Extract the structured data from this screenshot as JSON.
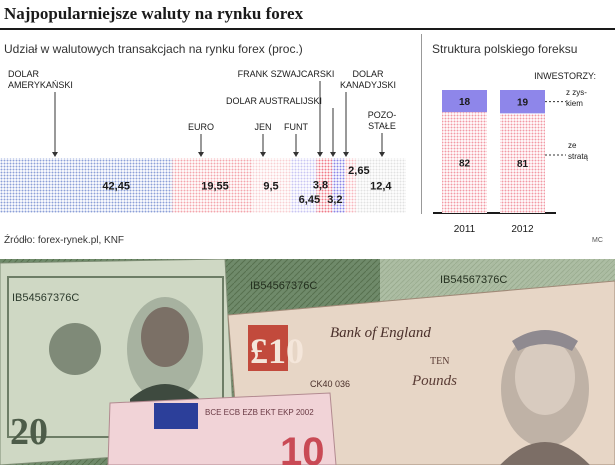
{
  "title": "Najpopularniejsze waluty na rynku forex",
  "left_subtitle": "Udział w walutowych transakcjach na rynku forex (proc.)",
  "right_subtitle": "Struktura polskiego foreksu",
  "source": "Źródło: forex-rynek.pl, KNF",
  "credit": "MC",
  "colors": {
    "dolar_amerykanski": "#8ca0d8",
    "euro": "#f4a6ad",
    "jen": "#f8d0d3",
    "funt": "#c9c6f2",
    "frank": "#f07a88",
    "dolar_australijski": "#8b84e6",
    "dolar_kanadyjski": "#f7b6bd",
    "pozostale": "#e2e2e2",
    "zysk": "#8e86ea",
    "strata": "#f29aa5"
  },
  "chart_data": [
    {
      "type": "bar",
      "orientation": "horizontal-stacked",
      "title": "Udział w walutowych transakcjach na rynku forex (proc.)",
      "categories": [
        "DOLAR AMERYKAŃSKI",
        "EURO",
        "JEN",
        "FUNT",
        "FRANK SZWAJCARSKI",
        "DOLAR AUSTRALIJSKI",
        "DOLAR KANADYJSKI",
        "POZO-STAŁE"
      ],
      "values": [
        42.45,
        19.55,
        9.5,
        6.45,
        3.8,
        3.2,
        2.65,
        12.4
      ],
      "value_labels": [
        "42,45",
        "19,55",
        "9,5",
        "6,45",
        "3,8",
        "3,2",
        "2,65",
        "12,4"
      ],
      "category_lines": [
        [
          "DOLAR",
          "AMERYKAŃSKI"
        ],
        [
          "EURO"
        ],
        [
          "JEN"
        ],
        [
          "FUNT"
        ],
        [
          "FRANK SZWAJCARSKI"
        ],
        [
          "DOLAR AUSTRALIJSKI"
        ],
        [
          "DOLAR",
          "KANADYJSKI"
        ],
        [
          "POZO-",
          "STAŁE"
        ]
      ]
    },
    {
      "type": "bar",
      "orientation": "vertical-stacked",
      "title": "Struktura polskiego foreksu",
      "legend_title": "INWESTORZY:",
      "categories": [
        "2011",
        "2012"
      ],
      "series": [
        {
          "name": "z zyskiem",
          "name_lines": [
            "z zys-",
            "kiem"
          ],
          "values": [
            18,
            19
          ]
        },
        {
          "name": "ze stratą",
          "name_lines": [
            "ze",
            "stratą"
          ],
          "values": [
            82,
            81
          ]
        }
      ],
      "ylim": [
        0,
        100
      ]
    }
  ],
  "photo": {
    "note_serials": [
      "IB54567376C",
      "IB54567376C",
      "IB54567376C",
      "CK40 036"
    ],
    "note_10_value": "£10",
    "bank_of_england": "Bank of England",
    "pound_word_top": "TEN",
    "pound_word_bottom": "Pounds",
    "euro_text": "BCE ECB EZB EKT EKP 2002",
    "euro_value": "10",
    "dollar_value": "20"
  }
}
